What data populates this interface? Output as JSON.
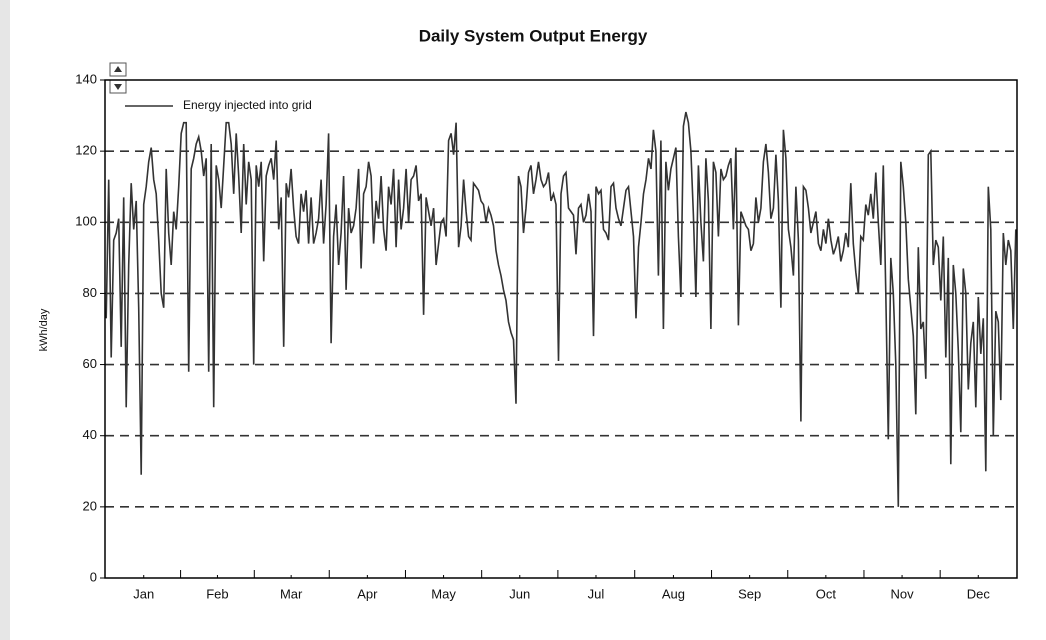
{
  "chart_data": {
    "type": "line",
    "title": "Daily System Output Energy",
    "y_label": "kWh/day",
    "xlim": [
      0,
      365
    ],
    "xticks": [
      {
        "value": 15.5,
        "label": "Jan"
      },
      {
        "value": 45,
        "label": "Feb"
      },
      {
        "value": 74.5,
        "label": "Mar"
      },
      {
        "value": 105,
        "label": "Apr"
      },
      {
        "value": 135.5,
        "label": "May"
      },
      {
        "value": 166,
        "label": "Jun"
      },
      {
        "value": 196.5,
        "label": "Jul"
      },
      {
        "value": 227.5,
        "label": "Aug"
      },
      {
        "value": 258,
        "label": "Sep"
      },
      {
        "value": 288.5,
        "label": "Oct"
      },
      {
        "value": 319,
        "label": "Nov"
      },
      {
        "value": 349.5,
        "label": "Dec"
      }
    ],
    "ylim": [
      0,
      140
    ],
    "yticks": [
      0,
      20,
      40,
      60,
      80,
      100,
      120,
      140
    ],
    "grid": true,
    "legend": "upper left",
    "series": [
      {
        "name": "Energy injected into grid",
        "color": "#333333",
        "values": [
          73,
          112,
          62,
          95,
          97,
          101,
          65,
          107,
          48,
          88,
          111,
          98,
          106,
          76,
          29,
          105,
          110,
          117,
          121,
          112,
          108,
          95,
          80,
          76,
          115,
          97,
          88,
          103,
          98,
          110,
          125,
          128,
          128,
          58,
          115,
          118,
          122,
          124,
          120,
          113,
          118,
          58,
          122,
          48,
          116,
          112,
          104,
          116,
          128,
          128,
          122,
          108,
          125,
          113,
          97,
          122,
          105,
          117,
          112,
          60,
          116,
          110,
          117,
          89,
          113,
          116,
          118,
          112,
          123,
          98,
          107,
          65,
          111,
          107,
          115,
          104,
          96,
          94,
          108,
          103,
          109,
          94,
          107,
          94,
          97,
          101,
          112,
          94,
          105,
          125,
          66,
          96,
          105,
          88,
          97,
          113,
          81,
          104,
          97,
          99,
          104,
          115,
          87,
          108,
          110,
          117,
          113,
          94,
          106,
          101,
          113,
          98,
          92,
          110,
          105,
          115,
          93,
          112,
          98,
          104,
          115,
          100,
          112,
          113,
          116,
          106,
          108,
          74,
          107,
          103,
          99,
          104,
          88,
          94,
          100,
          101,
          96,
          123,
          125,
          119,
          128,
          93,
          99,
          112,
          103,
          96,
          95,
          111,
          110,
          109,
          106,
          105,
          100,
          104,
          102,
          99,
          92,
          88,
          85,
          81,
          78,
          72,
          69,
          67,
          49,
          113,
          110,
          97,
          104,
          114,
          116,
          108,
          112,
          117,
          112,
          110,
          111,
          114,
          106,
          108,
          105,
          61,
          108,
          113,
          114,
          104,
          103,
          102,
          91,
          104,
          105,
          100,
          102,
          108,
          103,
          68,
          110,
          108,
          109,
          98,
          97,
          95,
          110,
          111,
          104,
          101,
          99,
          104,
          109,
          110,
          103,
          96,
          73,
          93,
          100,
          108,
          112,
          118,
          115,
          126,
          120,
          85,
          123,
          70,
          117,
          109,
          115,
          118,
          121,
          96,
          79,
          127,
          131,
          128,
          120,
          102,
          79,
          116,
          100,
          89,
          118,
          106,
          70,
          117,
          114,
          96,
          115,
          112,
          113,
          116,
          118,
          98,
          121,
          71,
          103,
          101,
          99,
          98,
          92,
          94,
          107,
          100,
          104,
          117,
          122,
          114,
          101,
          104,
          119,
          106,
          76,
          126,
          118,
          98,
          93,
          85,
          110,
          95,
          44,
          110,
          109,
          104,
          97,
          100,
          103,
          94,
          92,
          98,
          94,
          101,
          95,
          91,
          93,
          96,
          89,
          92,
          97,
          93,
          111,
          94,
          86,
          80,
          96,
          95,
          105,
          102,
          108,
          101,
          114,
          100,
          88,
          116,
          80,
          39,
          90,
          80,
          60,
          20,
          117,
          110,
          100,
          84,
          76,
          68,
          46,
          93,
          70,
          72,
          56,
          119,
          120,
          88,
          95,
          93,
          78,
          96,
          62,
          90,
          32,
          88,
          80,
          64,
          41,
          87,
          80,
          53,
          66,
          72,
          48,
          79,
          63,
          73,
          30,
          110,
          98,
          40,
          75,
          72,
          50,
          97,
          88,
          95,
          92,
          70,
          98
        ]
      }
    ]
  }
}
